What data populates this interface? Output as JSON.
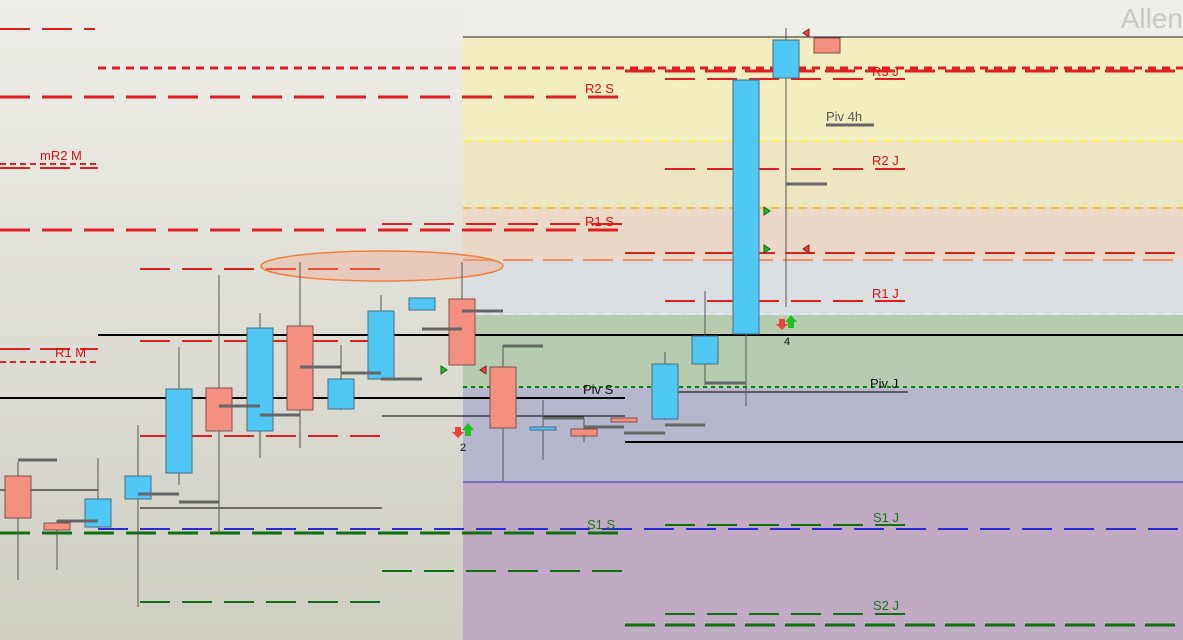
{
  "watermark": "Allen",
  "levels": {
    "r2_s": "R2 S",
    "mr2_m": "mR2 M",
    "r1_s": "R1 S",
    "r1_m": "R1 M",
    "piv_s": "Piv S",
    "s1_s": "S1 S",
    "r3_j": "R3 J",
    "piv_4h": "Piv 4h",
    "r2_j": "R2 J",
    "r1_j": "R1 J",
    "piv_j": "Piv J",
    "s1_j": "S1 J",
    "s2_j": "S2 J"
  },
  "markers": {
    "signal_a": "2",
    "signal_b": "4"
  }
}
